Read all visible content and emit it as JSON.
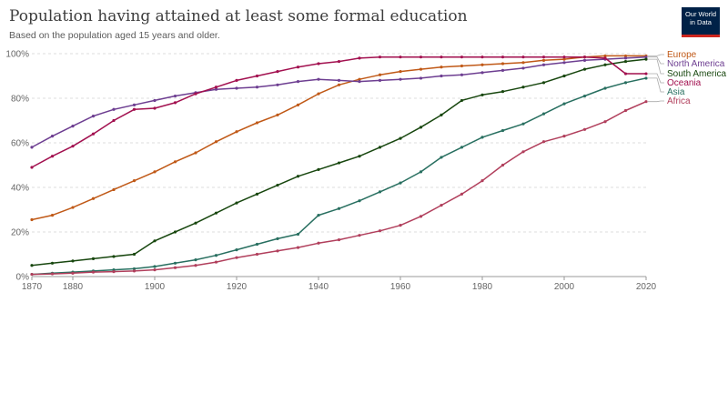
{
  "title": "Population having attained at least some formal education",
  "subtitle": "Based on the population aged 15 years and older.",
  "logo": {
    "line1": "Our World",
    "line2": "in Data"
  },
  "chart_data": {
    "type": "line",
    "title": "Population having attained at least some formal education",
    "subtitle": "Based on the population aged 15 years and older.",
    "xlabel": "",
    "ylabel": "",
    "xlim": [
      1870,
      2020
    ],
    "ylim": [
      0,
      100
    ],
    "x_ticks": [
      1870,
      1880,
      1900,
      1920,
      1940,
      1960,
      1980,
      2000,
      2020
    ],
    "y_ticks": [
      0,
      20,
      40,
      60,
      80,
      100
    ],
    "y_tick_labels": [
      "0%",
      "20%",
      "40%",
      "60%",
      "80%",
      "100%"
    ],
    "grid": "horizontal-dashed",
    "legend": "right",
    "x": [
      1870,
      1875,
      1880,
      1885,
      1890,
      1895,
      1900,
      1905,
      1910,
      1915,
      1920,
      1925,
      1930,
      1935,
      1940,
      1945,
      1950,
      1955,
      1960,
      1965,
      1970,
      1975,
      1980,
      1985,
      1990,
      1995,
      2000,
      2005,
      2010,
      2015,
      2020
    ],
    "series": [
      {
        "name": "Europe",
        "color": "#c05917",
        "values": [
          25.5,
          27.5,
          31,
          35,
          39,
          43,
          47,
          51.5,
          55.5,
          60.5,
          65,
          69,
          72.5,
          77,
          82,
          86,
          88.5,
          90.5,
          92,
          93,
          94,
          94.5,
          95,
          95.5,
          96,
          97,
          97.5,
          98.5,
          99,
          99,
          99
        ]
      },
      {
        "name": "North America",
        "color": "#6d3e91",
        "values": [
          58,
          63,
          67.5,
          72,
          75,
          77,
          79,
          81,
          82.5,
          84,
          84.5,
          85,
          86,
          87.5,
          88.5,
          88,
          87.5,
          88,
          88.5,
          89,
          90,
          90.5,
          91.5,
          92.5,
          93.5,
          95,
          96,
          97,
          97.5,
          98,
          98.5
        ]
      },
      {
        "name": "South America",
        "color": "#18470f",
        "values": [
          5,
          6,
          7,
          8,
          9,
          10,
          16,
          20,
          24,
          28.5,
          33,
          37,
          41,
          45,
          48,
          51,
          54,
          58,
          62,
          67,
          72.5,
          79,
          81.5,
          83,
          85,
          87,
          90,
          93,
          95,
          96.5,
          97.5
        ]
      },
      {
        "name": "Oceania",
        "color": "#a2104f",
        "values": [
          49,
          54,
          58.5,
          64,
          70,
          75,
          75.5,
          78,
          82,
          85,
          88,
          90,
          92,
          94,
          95.5,
          96.5,
          98,
          98.5,
          98.5,
          98.5,
          98.5,
          98.5,
          98.5,
          98.5,
          98.5,
          98.5,
          98.5,
          98.5,
          98,
          91,
          91
        ]
      },
      {
        "name": "Asia",
        "color": "#286f60",
        "values": [
          1,
          1.5,
          2,
          2.5,
          3,
          3.5,
          4.5,
          6,
          7.5,
          9.5,
          12,
          14.5,
          17,
          19,
          27.5,
          30.5,
          34,
          38,
          42,
          47,
          53.5,
          58,
          62.5,
          65.5,
          68.5,
          73,
          77.5,
          81,
          84.5,
          87,
          89
        ]
      },
      {
        "name": "Africa",
        "color": "#b13f5c",
        "values": [
          1,
          1.2,
          1.5,
          2,
          2.2,
          2.5,
          3,
          4,
          5,
          6.5,
          8.5,
          10,
          11.5,
          13,
          15,
          16.5,
          18.5,
          20.5,
          23,
          27,
          32,
          37,
          43,
          50,
          56,
          60.5,
          63,
          66,
          69.5,
          74.5,
          78.5
        ]
      }
    ]
  }
}
